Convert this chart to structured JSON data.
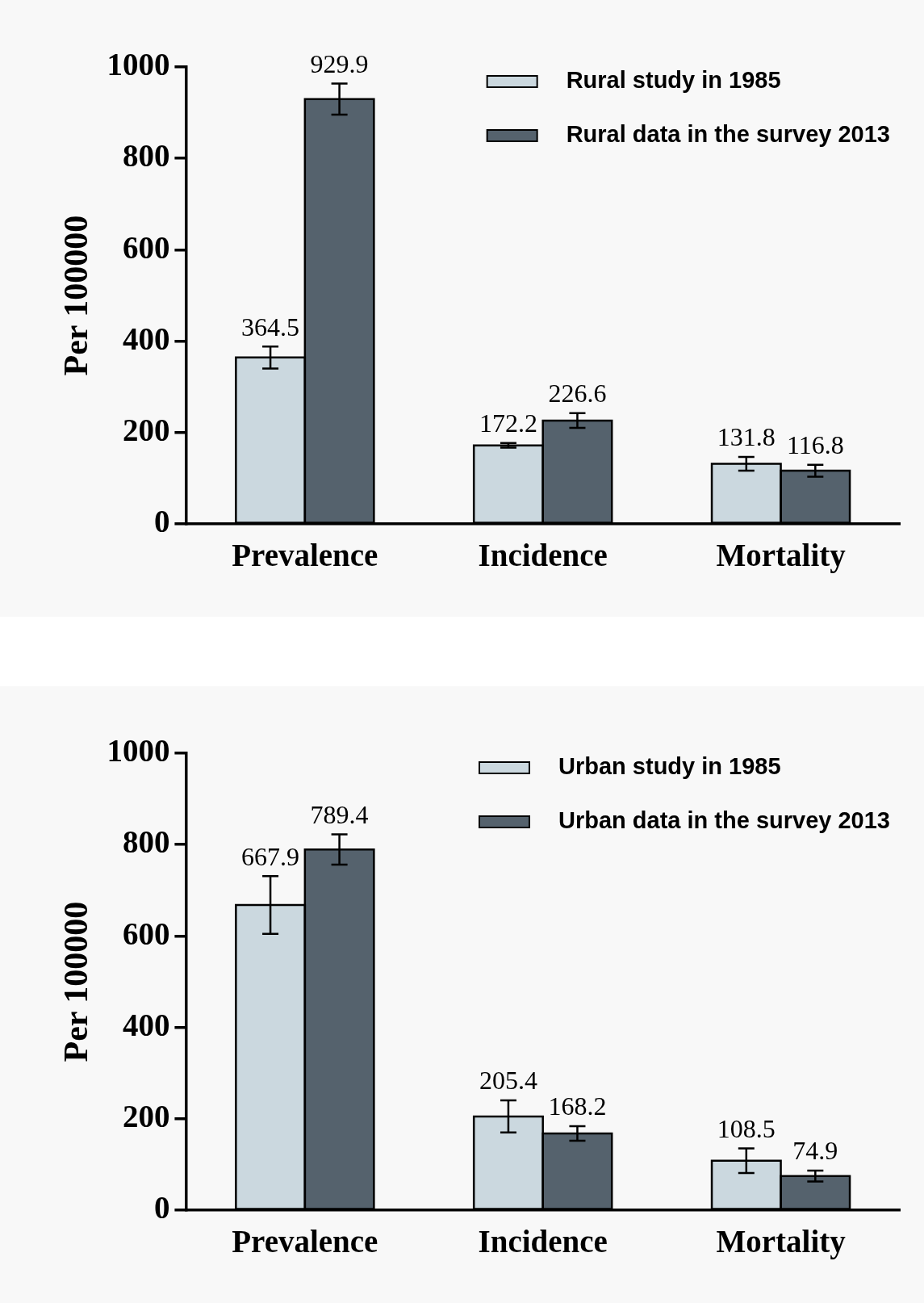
{
  "chart_data": [
    {
      "type": "bar",
      "ylabel": "Per 100000",
      "categories": [
        "Prevalence",
        "Incidence",
        "Mortality"
      ],
      "ylim": [
        0,
        1000
      ],
      "yticks": [
        0,
        200,
        400,
        600,
        800,
        1000
      ],
      "legend": "top right",
      "grid": false,
      "data_labels": true,
      "series": [
        {
          "name": "Rural study in 1985",
          "color": "#cbd8df",
          "values": [
            364.5,
            172.2,
            131.8
          ],
          "errors": [
            24,
            5,
            15
          ]
        },
        {
          "name": "Rural data in the survey 2013",
          "color": "#55626d",
          "values": [
            929.9,
            226.6,
            116.8
          ],
          "errors": [
            34,
            16,
            13
          ]
        }
      ]
    },
    {
      "type": "bar",
      "ylabel": "Per 100000",
      "categories": [
        "Prevalence",
        "Incidence",
        "Mortality"
      ],
      "ylim": [
        0,
        1000
      ],
      "yticks": [
        0,
        200,
        400,
        600,
        800,
        1000
      ],
      "legend": "top right",
      "grid": false,
      "data_labels": true,
      "series": [
        {
          "name": "Urban study in 1985",
          "color": "#cbd8df",
          "values": [
            667.9,
            205.4,
            108.5
          ],
          "errors": [
            63,
            35,
            27
          ]
        },
        {
          "name": "Urban data in the survey 2013",
          "color": "#55626d",
          "values": [
            789.4,
            168.2,
            74.9
          ],
          "errors": [
            33,
            16,
            12
          ]
        }
      ]
    }
  ]
}
